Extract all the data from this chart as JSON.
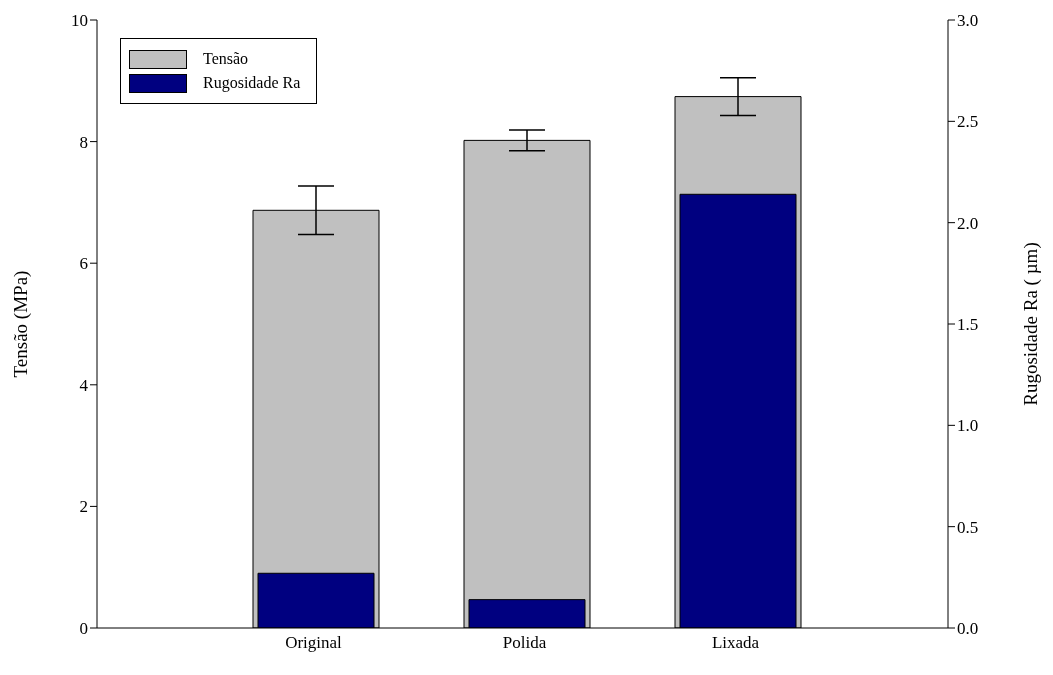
{
  "chart_data": {
    "type": "bar",
    "ylabel": "Tensão (MPa)",
    "y2label": "Rugosidade Ra ( µm)",
    "categories": [
      "Original",
      "Polida",
      "Lixada"
    ],
    "series": [
      {
        "name": "Tensão",
        "color": "#c0c0c0",
        "values": [
          6.87,
          8.02,
          8.74
        ],
        "errors": [
          0.4,
          0.17,
          0.31
        ]
      },
      {
        "name": "Rugosidade Ra",
        "color": "#000080",
        "values": [
          0.27,
          0.14,
          2.14
        ],
        "axis": "y2"
      }
    ],
    "ylim": [
      0,
      10
    ],
    "yticks": [
      0,
      2,
      4,
      6,
      8,
      10
    ],
    "y2lim": [
      0,
      3
    ],
    "y2ticks": [
      {
        "value": 0,
        "label": "0.0"
      },
      {
        "value": 0.5,
        "label": "0.5"
      },
      {
        "value": 1,
        "label": "1.0"
      },
      {
        "value": 1.5,
        "label": "1.5"
      },
      {
        "value": 2,
        "label": "2.0"
      },
      {
        "value": 2.5,
        "label": "2.5"
      },
      {
        "value": 3,
        "label": "3.0"
      }
    ],
    "grid": false,
    "legend": "top left"
  }
}
